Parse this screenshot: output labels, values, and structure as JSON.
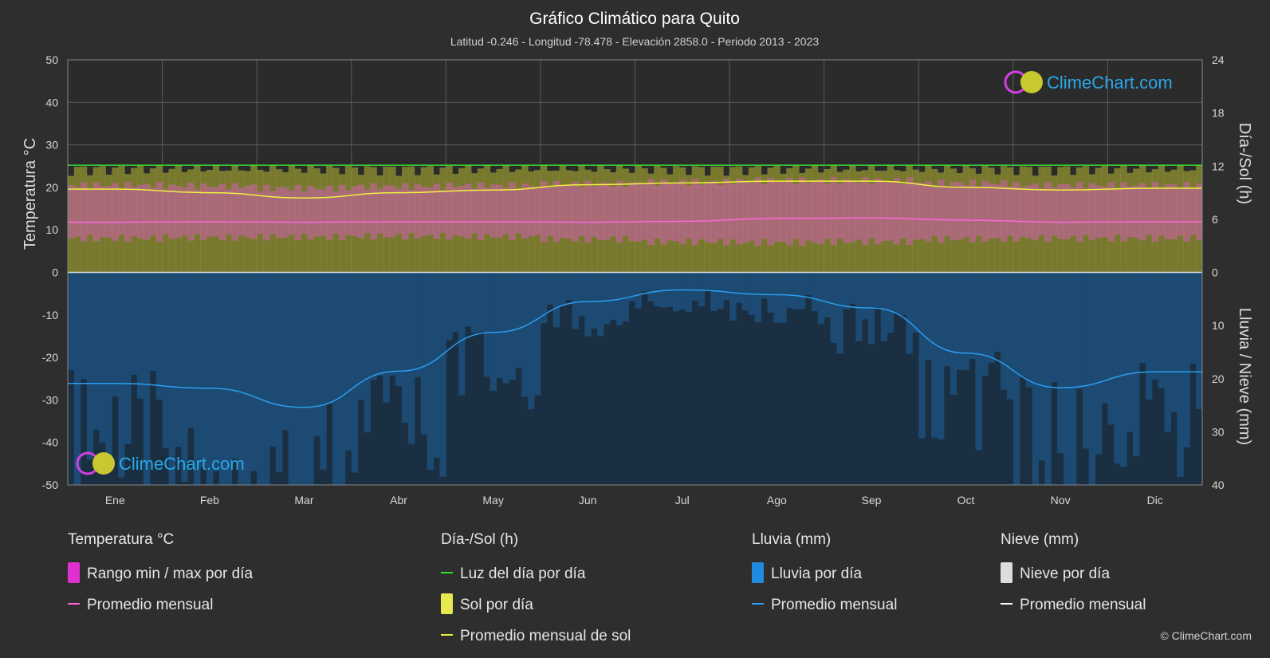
{
  "header": {
    "title": "Gráfico Climático para Quito",
    "subtitle": "Latitud -0.246 - Longitud -78.478 - Elevación 2858.0 - Periodo 2013 - 2023"
  },
  "logo": {
    "text": "ClimeChart.com"
  },
  "copyright": "© ClimeChart.com",
  "chart_data": {
    "type": "area",
    "categories": [
      "Ene",
      "Feb",
      "Mar",
      "Abr",
      "May",
      "Jun",
      "Jul",
      "Ago",
      "Sep",
      "Oct",
      "Nov",
      "Dic"
    ],
    "y_left": {
      "label": "Temperatura °C",
      "range": [
        -50,
        50
      ],
      "ticks": [
        50,
        40,
        30,
        20,
        10,
        0,
        -10,
        -20,
        -30,
        -40,
        -50
      ]
    },
    "y_right_top": {
      "label": "Día-/Sol (h)",
      "range": [
        0,
        24
      ],
      "ticks": [
        24,
        18,
        12,
        6,
        0
      ]
    },
    "y_right_bottom": {
      "label": "Lluvia / Nieve (mm)",
      "range": [
        0,
        40
      ],
      "ticks": [
        0,
        10,
        20,
        30,
        40
      ]
    },
    "grid": true,
    "series": [
      {
        "name": "Luz del día por día",
        "unit": "h",
        "values": [
          12.1,
          12.1,
          12.1,
          12.1,
          12.1,
          12.1,
          12.1,
          12.1,
          12.1,
          12.1,
          12.1,
          12.1
        ]
      },
      {
        "name": "Promedio mensual de sol",
        "unit": "h",
        "values": [
          9.4,
          9.0,
          8.4,
          9.0,
          9.3,
          9.9,
          10.1,
          10.3,
          10.3,
          9.6,
          9.3,
          9.5
        ]
      },
      {
        "name": "Promedio mensual",
        "kind": "temperature",
        "unit": "°C",
        "values": [
          11.8,
          11.9,
          11.8,
          11.9,
          11.9,
          11.8,
          12.0,
          12.7,
          12.8,
          12.3,
          11.8,
          11.9
        ]
      },
      {
        "name": "Temp max diaria",
        "unit": "°C",
        "values": [
          20.5,
          20.3,
          19.8,
          20.2,
          20.4,
          20.8,
          21.2,
          21.6,
          21.6,
          21.0,
          20.5,
          20.5
        ]
      },
      {
        "name": "Temp min diaria",
        "unit": "°C",
        "values": [
          8.0,
          8.2,
          8.3,
          8.5,
          8.4,
          7.8,
          7.2,
          7.0,
          7.2,
          7.8,
          8.0,
          8.0
        ]
      },
      {
        "name": "Promedio mensual",
        "kind": "rain",
        "unit": "mm",
        "values": [
          20.9,
          21.8,
          25.4,
          18.6,
          11.3,
          5.5,
          3.3,
          4.2,
          6.7,
          15.2,
          21.7,
          18.7
        ]
      }
    ]
  },
  "legend": {
    "groups": [
      {
        "heading": "Temperatura °C",
        "items": [
          {
            "label": "Rango min / max por día",
            "swatch": "#e030d0",
            "shape": "bar"
          },
          {
            "label": "Promedio mensual",
            "swatch": "#ff66dd",
            "shape": "line"
          }
        ]
      },
      {
        "heading": "Día-/Sol (h)",
        "items": [
          {
            "label": "Luz del día por día",
            "swatch": "#33dd33",
            "shape": "line"
          },
          {
            "label": "Sol por día",
            "swatch": "#e8e850",
            "shape": "bar"
          },
          {
            "label": "Promedio mensual de sol",
            "swatch": "#f0f040",
            "shape": "line"
          }
        ]
      },
      {
        "heading": "Lluvia (mm)",
        "items": [
          {
            "label": "Lluvia por día",
            "swatch": "#1f8ce0",
            "shape": "bar"
          },
          {
            "label": "Promedio mensual",
            "swatch": "#2a9ef0",
            "shape": "line"
          }
        ]
      },
      {
        "heading": "Nieve (mm)",
        "items": [
          {
            "label": "Nieve por día",
            "swatch": "#dddddd",
            "shape": "bar"
          },
          {
            "label": "Promedio mensual",
            "swatch": "#ffffff",
            "shape": "line"
          }
        ]
      }
    ]
  },
  "colors": {
    "background": "#2e2e2e",
    "daylight": "#33dd33",
    "sunshine_area": "#8c8c30",
    "sun_line": "#f0f040",
    "temp_range": "#d060b0",
    "temp_line": "#ff66dd",
    "rain_area": "#1d4f7a",
    "rain_line": "#2a9ef0",
    "grid": "#5a5a5a"
  }
}
